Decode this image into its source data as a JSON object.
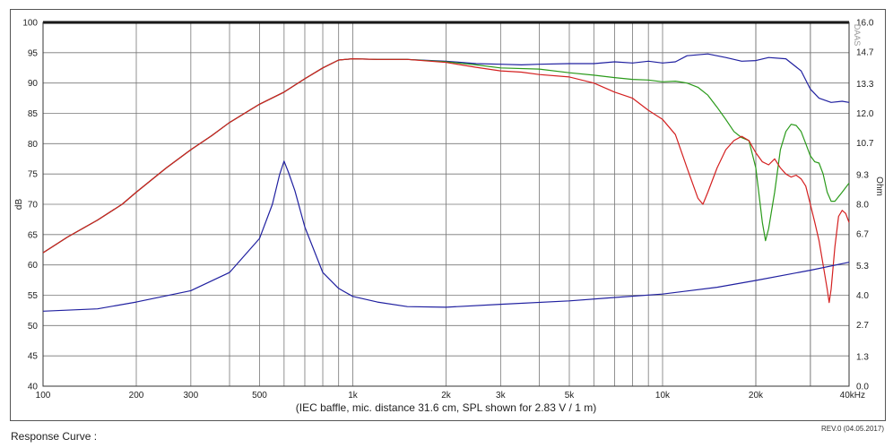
{
  "chart_data": {
    "type": "line",
    "xscale": "log",
    "xlim": [
      100,
      40000
    ],
    "ylim": [
      40,
      100
    ],
    "y2lim": [
      0,
      16
    ],
    "ylabel": "dB",
    "y2label": "Ohm",
    "xlabel": "(IEC baffle, mic. distance 31.6 cm, SPL shown for 2.83 V / 1 m)",
    "watermark": "DAAS",
    "x_tick_labels": [
      {
        "x": 100,
        "label": "100"
      },
      {
        "x": 200,
        "label": "200"
      },
      {
        "x": 300,
        "label": "300"
      },
      {
        "x": 500,
        "label": "500"
      },
      {
        "x": 1000,
        "label": "1k"
      },
      {
        "x": 2000,
        "label": "2k"
      },
      {
        "x": 3000,
        "label": "3k"
      },
      {
        "x": 5000,
        "label": "5k"
      },
      {
        "x": 10000,
        "label": "10k"
      },
      {
        "x": 20000,
        "label": "20k"
      },
      {
        "x": 40000,
        "label": "40kHz"
      }
    ],
    "y_ticks": [
      100,
      95,
      90,
      85,
      80,
      75,
      70,
      65,
      60,
      55,
      50,
      45,
      40
    ],
    "y2_ticks": [
      "16.0",
      "14.7",
      "13.3",
      "12.0",
      "10.7",
      "9.3",
      "8.0",
      "6.7",
      "5.3",
      "4.0",
      "2.7",
      "1.3",
      "0.0"
    ],
    "series": [
      {
        "axis": "left",
        "color": "#2020a0",
        "points": [
          [
            100,
            62
          ],
          [
            120,
            64.6
          ],
          [
            150,
            67.4
          ],
          [
            180,
            70
          ],
          [
            200,
            72
          ],
          [
            250,
            76
          ],
          [
            300,
            79
          ],
          [
            350,
            81.3
          ],
          [
            400,
            83.5
          ],
          [
            500,
            86.5
          ],
          [
            600,
            88.5
          ],
          [
            700,
            90.7
          ],
          [
            800,
            92.5
          ],
          [
            900,
            93.8
          ],
          [
            1000,
            94
          ],
          [
            1200,
            93.9
          ],
          [
            1500,
            93.9
          ],
          [
            2000,
            93.6
          ],
          [
            2500,
            93.2
          ],
          [
            3000,
            93.1
          ],
          [
            3500,
            93
          ],
          [
            4000,
            93.1
          ],
          [
            5000,
            93.2
          ],
          [
            6000,
            93.2
          ],
          [
            7000,
            93.5
          ],
          [
            8000,
            93.3
          ],
          [
            9000,
            93.6
          ],
          [
            10000,
            93.3
          ],
          [
            11000,
            93.5
          ],
          [
            12000,
            94.5
          ],
          [
            14000,
            94.8
          ],
          [
            16000,
            94.2
          ],
          [
            18000,
            93.6
          ],
          [
            20000,
            93.7
          ],
          [
            22000,
            94.2
          ],
          [
            25000,
            94
          ],
          [
            28000,
            92
          ],
          [
            30000,
            89
          ],
          [
            32000,
            87.5
          ],
          [
            35000,
            86.8
          ],
          [
            38000,
            87
          ],
          [
            40000,
            86.8
          ]
        ]
      },
      {
        "axis": "left",
        "color": "#2a9a1a",
        "points": [
          [
            100,
            62
          ],
          [
            120,
            64.6
          ],
          [
            150,
            67.4
          ],
          [
            180,
            70
          ],
          [
            200,
            72
          ],
          [
            250,
            76
          ],
          [
            300,
            79
          ],
          [
            350,
            81.3
          ],
          [
            400,
            83.5
          ],
          [
            500,
            86.5
          ],
          [
            600,
            88.5
          ],
          [
            700,
            90.7
          ],
          [
            800,
            92.5
          ],
          [
            900,
            93.8
          ],
          [
            1000,
            94
          ],
          [
            1200,
            93.9
          ],
          [
            1500,
            93.9
          ],
          [
            2000,
            93.5
          ],
          [
            2500,
            93
          ],
          [
            3000,
            92.5
          ],
          [
            4000,
            92.3
          ],
          [
            5000,
            91.7
          ],
          [
            6000,
            91.3
          ],
          [
            7000,
            90.9
          ],
          [
            8000,
            90.6
          ],
          [
            9000,
            90.5
          ],
          [
            10000,
            90.2
          ],
          [
            11000,
            90.3
          ],
          [
            12000,
            90
          ],
          [
            13000,
            89.3
          ],
          [
            14000,
            88
          ],
          [
            15000,
            86
          ],
          [
            16000,
            84
          ],
          [
            17000,
            82
          ],
          [
            18000,
            81
          ],
          [
            19000,
            80.5
          ],
          [
            20000,
            76
          ],
          [
            21000,
            67
          ],
          [
            21500,
            64
          ],
          [
            22000,
            66
          ],
          [
            23000,
            72
          ],
          [
            24000,
            79
          ],
          [
            25000,
            82
          ],
          [
            26000,
            83.2
          ],
          [
            27000,
            83
          ],
          [
            28000,
            82
          ],
          [
            29000,
            80
          ],
          [
            30000,
            78
          ],
          [
            31000,
            77
          ],
          [
            32000,
            76.8
          ],
          [
            33000,
            75
          ],
          [
            34000,
            72
          ],
          [
            35000,
            70.5
          ],
          [
            36000,
            70.5
          ],
          [
            38000,
            72
          ],
          [
            40000,
            73.5
          ]
        ]
      },
      {
        "axis": "left",
        "color": "#d42020",
        "points": [
          [
            100,
            62
          ],
          [
            120,
            64.6
          ],
          [
            150,
            67.4
          ],
          [
            180,
            70
          ],
          [
            200,
            72
          ],
          [
            250,
            76
          ],
          [
            300,
            79
          ],
          [
            350,
            81.3
          ],
          [
            400,
            83.5
          ],
          [
            500,
            86.5
          ],
          [
            600,
            88.5
          ],
          [
            700,
            90.7
          ],
          [
            800,
            92.5
          ],
          [
            900,
            93.8
          ],
          [
            1000,
            94
          ],
          [
            1200,
            93.9
          ],
          [
            1500,
            93.9
          ],
          [
            2000,
            93.4
          ],
          [
            2500,
            92.6
          ],
          [
            3000,
            92
          ],
          [
            3500,
            91.8
          ],
          [
            4000,
            91.4
          ],
          [
            5000,
            91
          ],
          [
            6000,
            90
          ],
          [
            7000,
            88.5
          ],
          [
            8000,
            87.5
          ],
          [
            9000,
            85.5
          ],
          [
            10000,
            84
          ],
          [
            11000,
            81.5
          ],
          [
            12000,
            76
          ],
          [
            13000,
            71
          ],
          [
            13500,
            70
          ],
          [
            14000,
            72
          ],
          [
            15000,
            76
          ],
          [
            16000,
            79
          ],
          [
            17000,
            80.5
          ],
          [
            18000,
            81.2
          ],
          [
            19000,
            80.5
          ],
          [
            20000,
            78.5
          ],
          [
            21000,
            77
          ],
          [
            22000,
            76.5
          ],
          [
            23000,
            77.5
          ],
          [
            24000,
            76
          ],
          [
            25000,
            75
          ],
          [
            26000,
            74.5
          ],
          [
            27000,
            74.8
          ],
          [
            28000,
            74.2
          ],
          [
            29000,
            73
          ],
          [
            30000,
            70
          ],
          [
            31000,
            67
          ],
          [
            32000,
            64
          ],
          [
            33000,
            60
          ],
          [
            34000,
            56
          ],
          [
            34500,
            53.8
          ],
          [
            35000,
            56
          ],
          [
            36000,
            63
          ],
          [
            37000,
            68
          ],
          [
            38000,
            69
          ],
          [
            39000,
            68.5
          ],
          [
            40000,
            67
          ]
        ]
      },
      {
        "axis": "right",
        "color": "#2020a0",
        "points": [
          [
            100,
            3.3
          ],
          [
            150,
            3.4
          ],
          [
            200,
            3.7
          ],
          [
            300,
            4.2
          ],
          [
            400,
            5.0
          ],
          [
            500,
            6.5
          ],
          [
            550,
            8.0
          ],
          [
            580,
            9.3
          ],
          [
            600,
            9.9
          ],
          [
            620,
            9.4
          ],
          [
            650,
            8.6
          ],
          [
            700,
            7.0
          ],
          [
            800,
            5.0
          ],
          [
            900,
            4.3
          ],
          [
            1000,
            3.95
          ],
          [
            1200,
            3.7
          ],
          [
            1500,
            3.5
          ],
          [
            2000,
            3.47
          ],
          [
            3000,
            3.6
          ],
          [
            5000,
            3.75
          ],
          [
            7000,
            3.9
          ],
          [
            10000,
            4.05
          ],
          [
            15000,
            4.35
          ],
          [
            20000,
            4.65
          ],
          [
            30000,
            5.1
          ],
          [
            40000,
            5.45
          ]
        ]
      }
    ]
  },
  "footer": {
    "caption": "Response Curve :",
    "revision": "REV.0 (04.05.2017)"
  }
}
